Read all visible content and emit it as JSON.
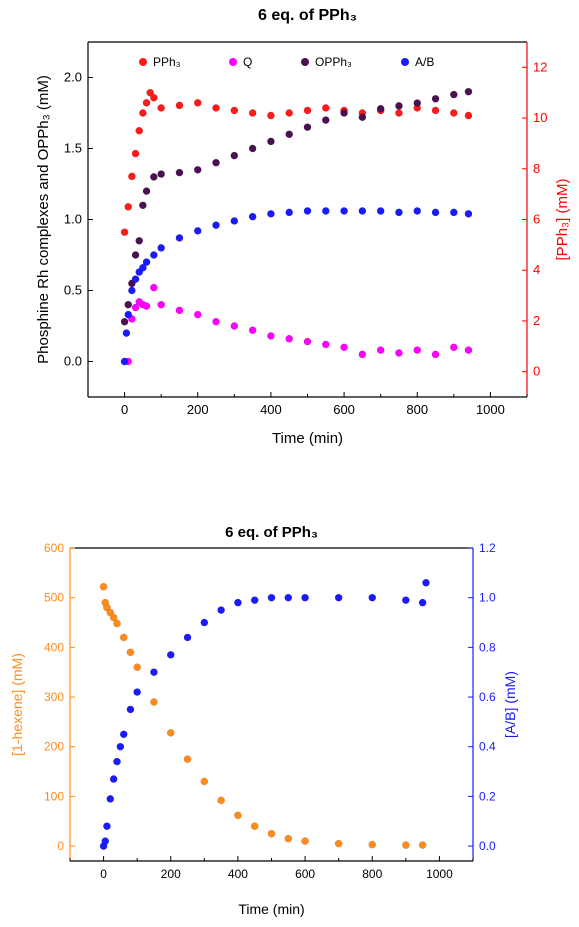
{
  "colors": {
    "red": "#ff1a1a",
    "magenta": "#ff00ff",
    "purple": "#4b1052",
    "blue": "#1a1aff",
    "orange": "#ff8c1a",
    "axis_blue": "#1a1aff",
    "axis_red": "#ff0000"
  },
  "chart_data": [
    {
      "type": "scatter",
      "title": "6 eq. of PPh₃",
      "xlabel": "Time (min)",
      "ylabel_left": "Phosphine Rh complexes and OPPh₃ (mM)",
      "ylabel_right": "[PPh₃] (mM)",
      "xlim": [
        -100,
        1100
      ],
      "ylim_left": [
        -0.25,
        2.25
      ],
      "ylim_right": [
        -1,
        13
      ],
      "x_ticks": [
        "0",
        "200",
        "400",
        "600",
        "800",
        "1000"
      ],
      "y_left_ticks": [
        "0.0",
        "0.5",
        "1.0",
        "1.5",
        "2.0"
      ],
      "y_right_ticks": [
        "0",
        "2",
        "4",
        "6",
        "8",
        "10",
        "12"
      ],
      "grid": false,
      "legend_position": "top",
      "series": [
        {
          "name": "PPh₃",
          "axis": "right",
          "color": "red",
          "x": [
            0,
            10,
            20,
            30,
            40,
            50,
            60,
            70,
            80,
            100,
            150,
            200,
            250,
            300,
            350,
            400,
            450,
            500,
            550,
            600,
            650,
            700,
            750,
            800,
            850,
            900,
            940
          ],
          "y": [
            5.5,
            6.5,
            7.7,
            8.6,
            9.5,
            10.2,
            10.6,
            11.0,
            10.8,
            10.4,
            10.5,
            10.6,
            10.4,
            10.3,
            10.2,
            10.1,
            10.2,
            10.3,
            10.4,
            10.3,
            10.2,
            10.3,
            10.2,
            10.4,
            10.3,
            10.2,
            10.1
          ]
        },
        {
          "name": "Q",
          "axis": "left",
          "color": "magenta",
          "x": [
            0,
            10,
            20,
            30,
            40,
            50,
            60,
            80,
            100,
            150,
            200,
            250,
            300,
            350,
            400,
            450,
            500,
            550,
            600,
            650,
            700,
            750,
            800,
            850,
            900,
            940
          ],
          "y": [
            0.0,
            0.0,
            0.3,
            0.38,
            0.42,
            0.4,
            0.39,
            0.52,
            0.4,
            0.36,
            0.33,
            0.28,
            0.25,
            0.22,
            0.18,
            0.16,
            0.14,
            0.12,
            0.1,
            0.05,
            0.08,
            0.06,
            0.08,
            0.05,
            0.1,
            0.08
          ]
        },
        {
          "name": "OPPh₃",
          "axis": "left",
          "color": "purple",
          "x": [
            0,
            10,
            20,
            30,
            40,
            50,
            60,
            80,
            100,
            150,
            200,
            250,
            300,
            350,
            400,
            450,
            500,
            550,
            600,
            650,
            700,
            750,
            800,
            850,
            900,
            940
          ],
          "y": [
            0.28,
            0.4,
            0.55,
            0.75,
            0.85,
            1.1,
            1.2,
            1.3,
            1.32,
            1.33,
            1.35,
            1.4,
            1.45,
            1.5,
            1.55,
            1.6,
            1.65,
            1.7,
            1.75,
            1.72,
            1.78,
            1.8,
            1.82,
            1.85,
            1.88,
            1.9
          ]
        },
        {
          "name": "A/B",
          "axis": "left",
          "color": "blue",
          "x": [
            0,
            5,
            10,
            20,
            30,
            40,
            50,
            60,
            80,
            100,
            150,
            200,
            250,
            300,
            350,
            400,
            450,
            500,
            550,
            600,
            650,
            700,
            750,
            800,
            850,
            900,
            940
          ],
          "y": [
            0.0,
            0.2,
            0.33,
            0.5,
            0.58,
            0.63,
            0.66,
            0.7,
            0.75,
            0.8,
            0.87,
            0.92,
            0.96,
            0.99,
            1.02,
            1.04,
            1.05,
            1.06,
            1.06,
            1.06,
            1.06,
            1.06,
            1.05,
            1.06,
            1.05,
            1.05,
            1.04
          ]
        }
      ]
    },
    {
      "type": "scatter",
      "title": "6 eq. of PPh₃",
      "xlabel": "Time (min)",
      "ylabel_left": "[1-hexene] (mM)",
      "ylabel_right": "[A/B] (mM)",
      "xlim": [
        -100,
        1100
      ],
      "ylim_left": [
        -30,
        600
      ],
      "ylim_right": [
        -0.06,
        1.2
      ],
      "x_ticks": [
        "0",
        "200",
        "400",
        "600",
        "800",
        "1000"
      ],
      "y_left_ticks": [
        "0",
        "100",
        "200",
        "300",
        "400",
        "500",
        "600"
      ],
      "y_right_ticks": [
        "0.0",
        "0.2",
        "0.4",
        "0.6",
        "0.8",
        "1.0",
        "1.2"
      ],
      "grid": false,
      "legend_position": "none",
      "series": [
        {
          "name": "",
          "axis": "left",
          "color": "orange",
          "x": [
            0,
            5,
            10,
            20,
            30,
            40,
            60,
            80,
            100,
            150,
            200,
            250,
            300,
            350,
            400,
            450,
            500,
            550,
            600,
            700,
            800,
            900,
            950
          ],
          "y": [
            522,
            490,
            480,
            470,
            460,
            448,
            420,
            390,
            360,
            290,
            228,
            175,
            130,
            92,
            62,
            40,
            25,
            15,
            10,
            5,
            3,
            2,
            2
          ]
        },
        {
          "name": "",
          "axis": "right",
          "color": "blue",
          "x": [
            0,
            5,
            10,
            20,
            30,
            40,
            50,
            60,
            80,
            100,
            150,
            200,
            250,
            300,
            350,
            400,
            450,
            500,
            550,
            600,
            700,
            800,
            900,
            950,
            960
          ],
          "y": [
            0.0,
            0.02,
            0.08,
            0.19,
            0.27,
            0.34,
            0.4,
            0.45,
            0.55,
            0.62,
            0.7,
            0.77,
            0.84,
            0.9,
            0.95,
            0.98,
            0.99,
            1.0,
            1.0,
            1.0,
            1.0,
            1.0,
            0.99,
            0.98,
            1.06
          ]
        }
      ]
    }
  ]
}
